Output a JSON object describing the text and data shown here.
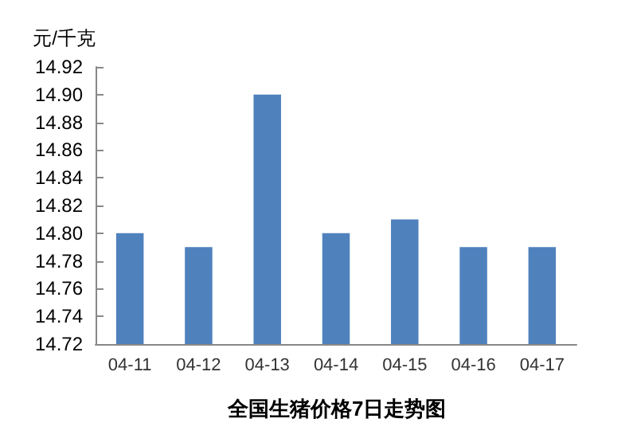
{
  "chart_data": {
    "type": "bar",
    "title": "全国生猪价格7日走势图",
    "ylabel": "元/千克",
    "categories": [
      "04-11",
      "04-12",
      "04-13",
      "04-14",
      "04-15",
      "04-16",
      "04-17"
    ],
    "values": [
      14.8,
      14.79,
      14.9,
      14.8,
      14.81,
      14.79,
      14.79
    ],
    "color": "#4f81bd",
    "ylim": [
      14.72,
      14.92
    ],
    "yticks": [
      14.72,
      14.74,
      14.76,
      14.78,
      {
        "value": 14.8,
        "label": "14.80"
      },
      14.82,
      14.84,
      14.86,
      14.88,
      {
        "value": 14.9,
        "label": "14.90"
      },
      14.92
    ],
    "grid": false
  }
}
